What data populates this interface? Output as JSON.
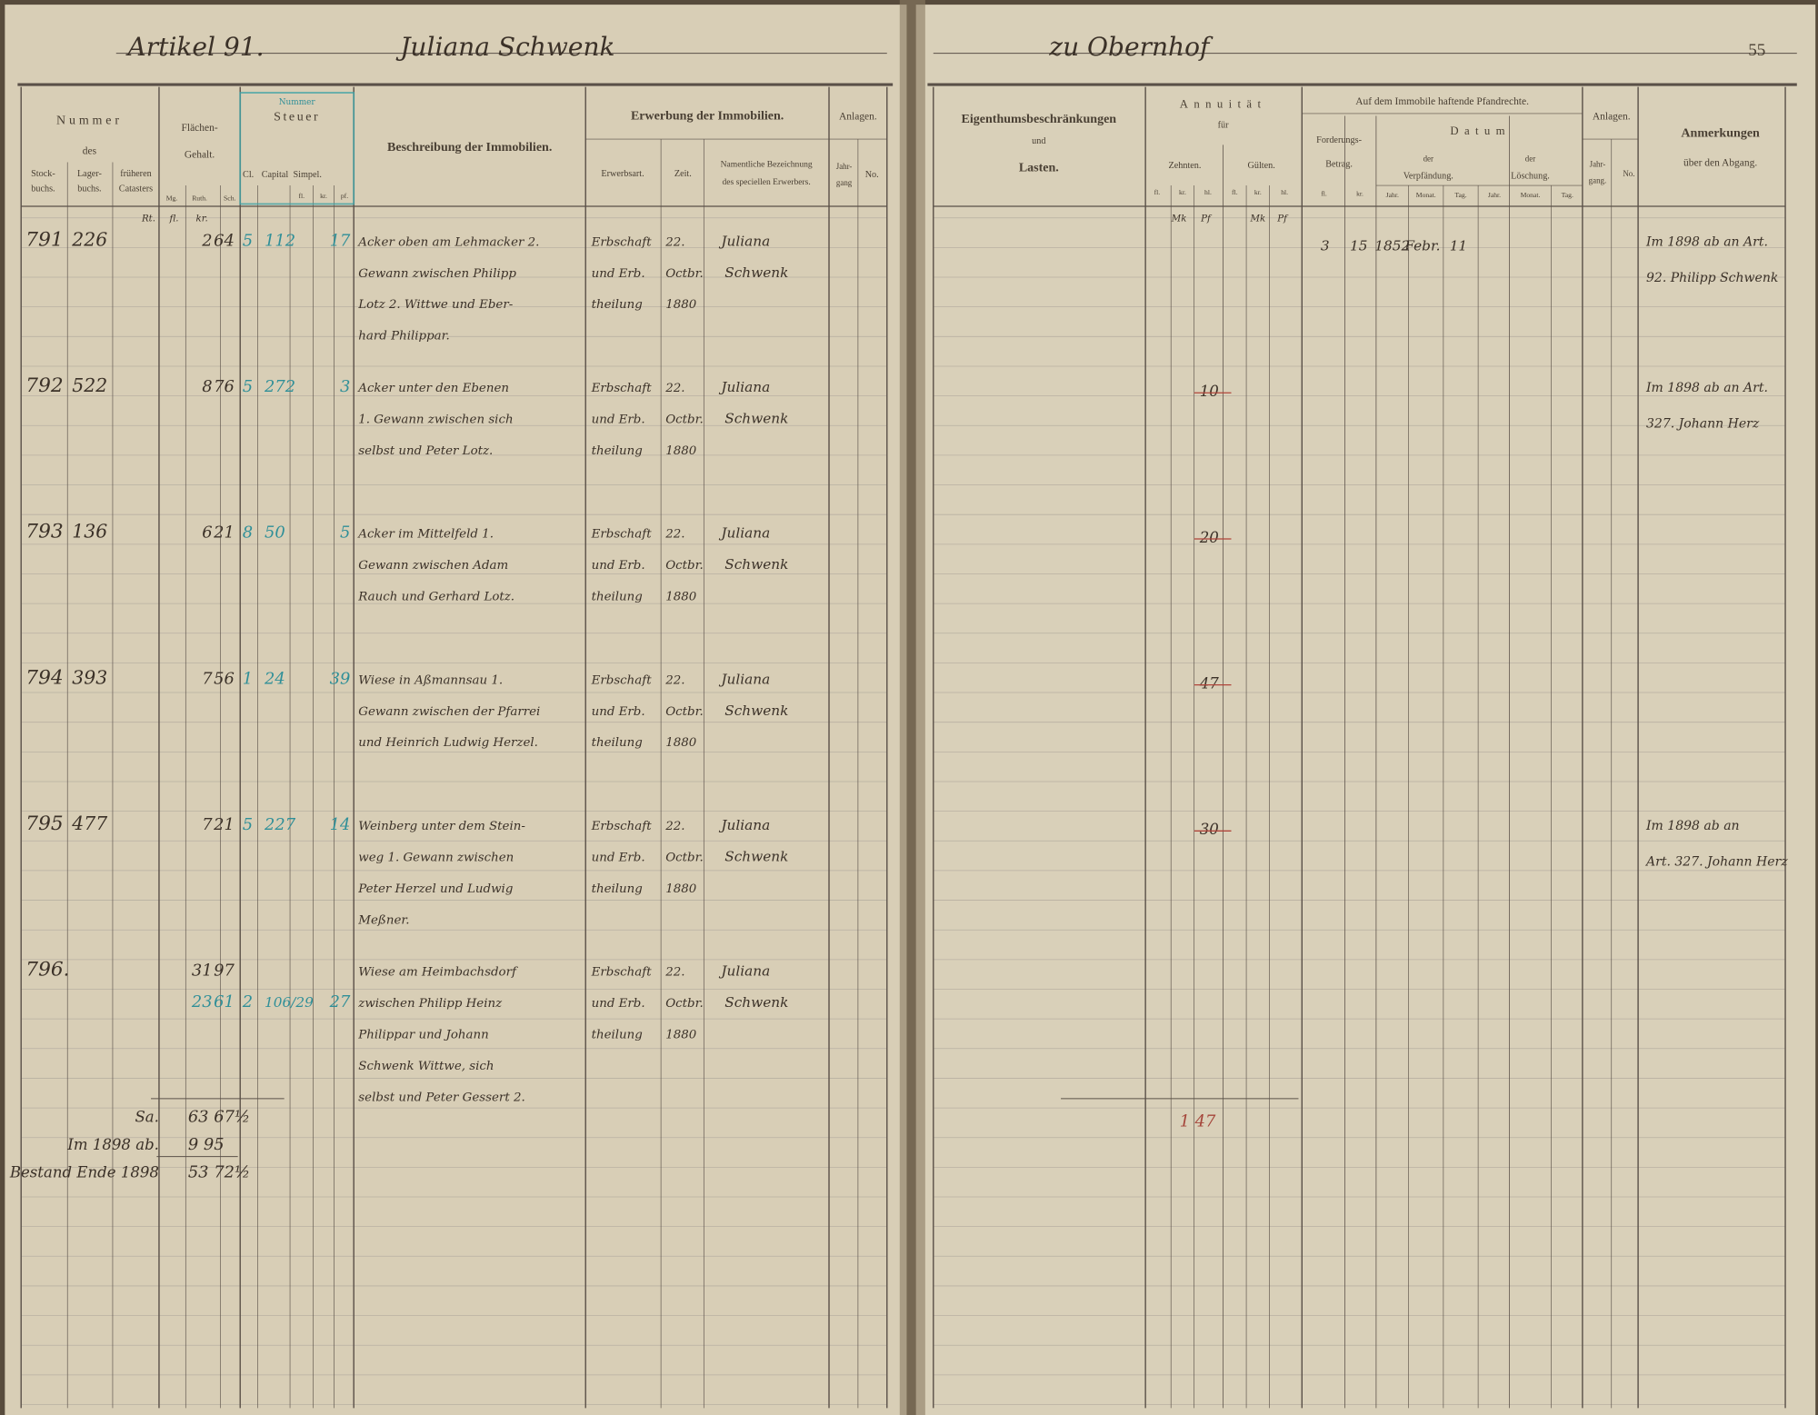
{
  "header": {
    "article": "Artikel 91.",
    "owner": "Juliana Schwenk",
    "place": "zu Obernhof",
    "page": "55"
  },
  "left_header": {
    "nummer": "Nummer",
    "des": "des",
    "stockbuch": [
      "Stock-",
      "buchs."
    ],
    "lagerbuch": [
      "Lager-",
      "buchs."
    ],
    "cataster": [
      "früheren",
      "Catasters"
    ],
    "flaeche": [
      "Flächen-",
      "Gehalt."
    ],
    "flaeche_units": [
      "Mg.",
      "Ruth.",
      "Sch."
    ],
    "steuer_stamp": "Nummer",
    "steuer": "Steuer",
    "steuer_cols": [
      "Cl.",
      "Capital",
      "Simpel."
    ],
    "simpel_units": [
      "fl.",
      "kr.",
      "pf."
    ],
    "beschreibung": "Beschreibung der Immobilien.",
    "erwerbung": "Erwerbung der Immobilien.",
    "erwerbsart": "Erwerbsart.",
    "zeit": "Zeit.",
    "erwerber": [
      "Namentliche Bezeichnung",
      "des speciellen Erwerbers."
    ],
    "anlagen": "Anlagen.",
    "jahrgang": [
      "Jahr-",
      "gang"
    ],
    "nr": "No."
  },
  "right_header": {
    "eigenthum": "Eigenthumsbeschränkungen",
    "und": "und",
    "lasten": "Lasten.",
    "annuitaet": "Annuität",
    "fuer": "für",
    "zehnten": "Zehnten.",
    "gueltzen": "Gülten.",
    "units": [
      "fl.",
      "kr.",
      "hl.",
      "fl.",
      "kr.",
      "hl."
    ],
    "pfand": "Auf dem Immobile haftende Pfandrechte.",
    "forderung": [
      "Forderungs-",
      "Betrag."
    ],
    "forderung_units": [
      "fl.",
      "kr."
    ],
    "datum": "Datum",
    "verpfaendung": [
      "der",
      "Verpfändung."
    ],
    "loeschung": [
      "der",
      "Löschung."
    ],
    "date_units": [
      "Jahr.",
      "Monat.",
      "Tag.",
      "Jahr.",
      "Monat.",
      "Tag."
    ],
    "anlagen": "Anlagen.",
    "jahrgang": [
      "Jahr-",
      "gang."
    ],
    "nr": "No.",
    "anmerkungen": [
      "Anmerkungen",
      "über den Abgang."
    ]
  },
  "unit_marks_left": [
    "Rt.",
    "fl.",
    "kr."
  ],
  "unit_marks_right": [
    "Mk",
    "Pf",
    "Mk",
    "Pf"
  ],
  "rows": [
    {
      "stock": "791",
      "lager": "226",
      "area": [
        "2",
        "64"
      ],
      "cls": "5",
      "capital": "112",
      "simpel": "17",
      "desc": [
        "Acker oben am Lehmacker 2.",
        "Gewann zwischen Philipp",
        "Lotz 2. Wittwe und Eber-",
        "hard Philippar."
      ],
      "erwerbsart": [
        "Erbschaft",
        "und Erb.",
        "theilung"
      ],
      "zeit": [
        "22.",
        "Octbr.",
        "1880"
      ],
      "erwerber": [
        "Juliana",
        "Schwenk"
      ],
      "pfand": {
        "fl": "3",
        "kr": "15",
        "jahr": "1852",
        "monat": "Febr.",
        "tag": "11"
      },
      "remark": [
        "Im 1898 ab an Art.",
        "92. Philipp Schwenk"
      ]
    },
    {
      "stock": "792",
      "lager": "522",
      "area": [
        "8",
        "76"
      ],
      "cls": "5",
      "capital": "272",
      "simpel": "3",
      "desc": [
        "Acker unter den Ebenen",
        "1. Gewann zwischen sich",
        "selbst und Peter Lotz."
      ],
      "erwerbsart": [
        "Erbschaft",
        "und Erb.",
        "theilung"
      ],
      "zeit": [
        "22.",
        "Octbr.",
        "1880"
      ],
      "erwerber": [
        "Juliana",
        "Schwenk"
      ],
      "zehnten": "10",
      "remark": [
        "Im 1898 ab an Art.",
        "327. Johann Herz"
      ]
    },
    {
      "stock": "793",
      "lager": "136",
      "area": [
        "6",
        "21"
      ],
      "cls": "8",
      "capital": "50",
      "simpel": "5",
      "desc": [
        "Acker im Mittelfeld 1.",
        "Gewann zwischen Adam",
        "Rauch und Gerhard Lotz."
      ],
      "erwerbsart": [
        "Erbschaft",
        "und Erb.",
        "theilung"
      ],
      "zeit": [
        "22.",
        "Octbr.",
        "1880"
      ],
      "erwerber": [
        "Juliana",
        "Schwenk"
      ],
      "zehnten": "20"
    },
    {
      "stock": "794",
      "lager": "393",
      "area": [
        "7",
        "56"
      ],
      "cls": "1",
      "capital": "24",
      "simpel": "39",
      "desc": [
        "Wiese in Aßmannsau 1.",
        "Gewann zwischen der Pfarrei",
        "und Heinrich Ludwig Herzel."
      ],
      "erwerbsart": [
        "Erbschaft",
        "und Erb.",
        "theilung"
      ],
      "zeit": [
        "22.",
        "Octbr.",
        "1880"
      ],
      "erwerber": [
        "Juliana",
        "Schwenk"
      ],
      "zehnten": "47"
    },
    {
      "stock": "795",
      "lager": "477",
      "area": [
        "7",
        "21"
      ],
      "cls": "5",
      "capital": "227",
      "simpel": "14",
      "desc": [
        "Weinberg unter dem Stein-",
        "weg 1. Gewann zwischen",
        "Peter Herzel und Ludwig",
        "Meßner."
      ],
      "erwerbsart": [
        "Erbschaft",
        "und Erb.",
        "theilung"
      ],
      "zeit": [
        "22.",
        "Octbr.",
        "1880"
      ],
      "erwerber": [
        "Juliana",
        "Schwenk"
      ],
      "zehnten": "30",
      "remark": [
        "Im 1898 ab an",
        "Art. 327. Johann Herz"
      ]
    },
    {
      "stock": "796.",
      "area": [
        "31",
        "97"
      ],
      "area2": [
        "23",
        "61"
      ],
      "cls": "2",
      "capital": "106/29",
      "simpel": "27",
      "desc": [
        "Wiese am Heimbachsdorf",
        "zwischen Philipp Heinz",
        "Philippar und Johann",
        "Schwenk Wittwe, sich",
        "selbst und Peter Gessert 2."
      ],
      "erwerbsart": [
        "Erbschaft",
        "und Erb.",
        "theilung"
      ],
      "zeit": [
        "22.",
        "Octbr.",
        "1880"
      ],
      "erwerber": [
        "Juliana",
        "Schwenk"
      ]
    }
  ],
  "totals": [
    {
      "label": "Sa.",
      "value": "63 67½"
    },
    {
      "label": "Im 1898 ab.",
      "value": "9 95"
    },
    {
      "label": "Bestand Ende 1898",
      "value": "53 72½"
    }
  ],
  "right_total": "1 47"
}
